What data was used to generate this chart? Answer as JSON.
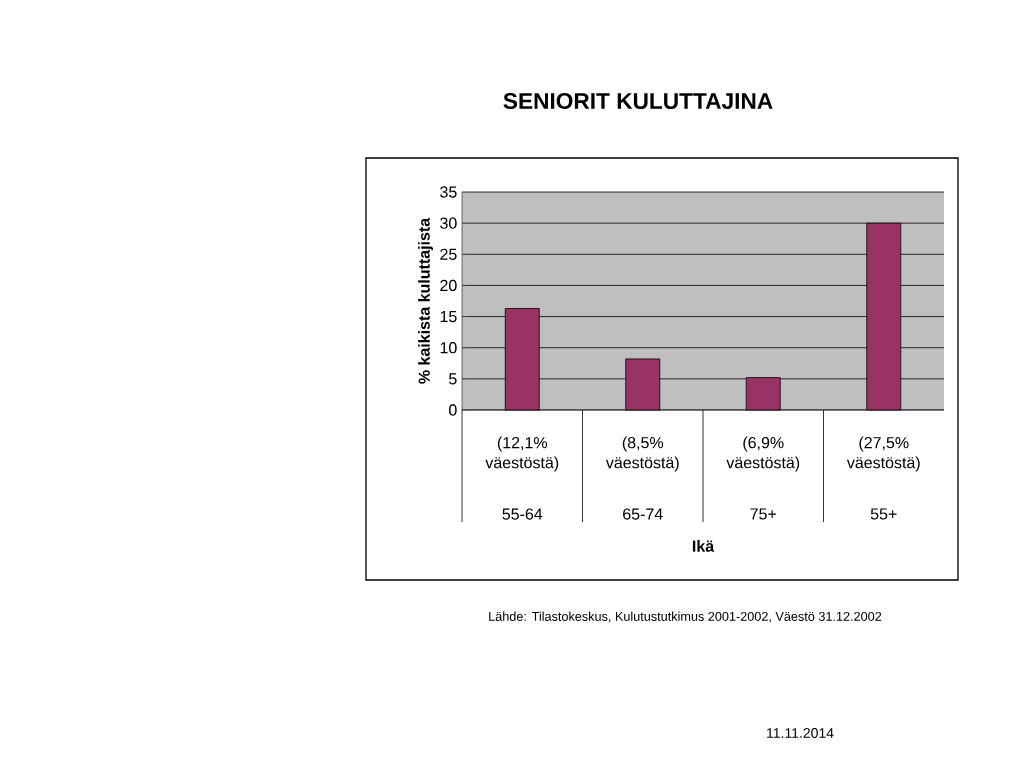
{
  "chart_data": {
    "type": "bar",
    "title": "SENIORIT KULUTTAJINA",
    "xlabel": "Ikä",
    "ylabel": "% kaikista kuluttajista",
    "categories": [
      "55-64",
      "65-74",
      "75+",
      "55+"
    ],
    "values": [
      16.3,
      8.2,
      5.2,
      30.0
    ],
    "color": "#993366",
    "ylim": [
      0,
      35
    ],
    "yticks": [
      0,
      5,
      10,
      15,
      20,
      25,
      30,
      35
    ],
    "grid": "y",
    "annotations": [
      "(12,1% väestöstä)",
      "(8,5% väestöstä)",
      "(6,9% väestöstä)",
      "(27,5% väestöstä)",
      "Lähde: Tilastokeskus, Kulutustutkimus 2001-2002, Väestö 31.12.2002",
      "11.11.2014"
    ]
  }
}
